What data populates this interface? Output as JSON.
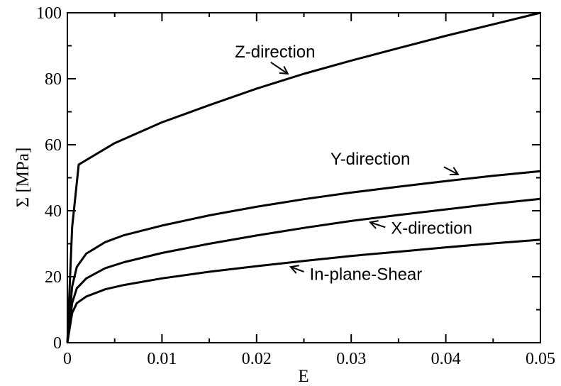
{
  "chart_data": {
    "type": "line",
    "xlabel": "E",
    "ylabel": "Σ [MPa]",
    "xlim": [
      0,
      0.05
    ],
    "ylim": [
      0,
      100
    ],
    "xticks": [
      0,
      0.01,
      0.02,
      0.03,
      0.04,
      0.05
    ],
    "xtick_labels": [
      "0",
      "0.01",
      "0.02",
      "0.03",
      "0.04",
      "0.05"
    ],
    "yticks": [
      0,
      20,
      40,
      60,
      80,
      100
    ],
    "ytick_labels": [
      "0",
      "20",
      "40",
      "60",
      "80",
      "100"
    ],
    "grid": false,
    "series": [
      {
        "name": "Z-direction",
        "x": [
          0,
          0.0005,
          0.0012,
          0.005,
          0.01,
          0.015,
          0.02,
          0.025,
          0.03,
          0.035,
          0.04,
          0.045,
          0.05
        ],
        "y": [
          0,
          35,
          54,
          60.5,
          66.8,
          72.0,
          77.0,
          81.5,
          85.5,
          89.3,
          93.0,
          96.5,
          100
        ]
      },
      {
        "name": "Y-direction",
        "x": [
          0,
          0.0005,
          0.001,
          0.002,
          0.004,
          0.006,
          0.01,
          0.015,
          0.02,
          0.025,
          0.03,
          0.035,
          0.04,
          0.045,
          0.05
        ],
        "y": [
          0,
          17,
          23,
          27,
          30.5,
          32.6,
          35.5,
          38.6,
          41.2,
          43.5,
          45.5,
          47.3,
          49.0,
          50.6,
          52.0
        ]
      },
      {
        "name": "X-direction",
        "x": [
          0,
          0.0005,
          0.001,
          0.002,
          0.004,
          0.006,
          0.01,
          0.015,
          0.02,
          0.025,
          0.03,
          0.035,
          0.04,
          0.045,
          0.05
        ],
        "y": [
          0,
          12,
          16.5,
          19.5,
          22.6,
          24.4,
          27.2,
          30.0,
          32.5,
          34.8,
          36.9,
          38.7,
          40.4,
          42.1,
          43.6
        ]
      },
      {
        "name": "In-plane-Shear",
        "x": [
          0,
          0.0005,
          0.001,
          0.002,
          0.004,
          0.006,
          0.01,
          0.015,
          0.02,
          0.025,
          0.03,
          0.035,
          0.04,
          0.045,
          0.05
        ],
        "y": [
          0,
          9,
          12,
          14,
          16.2,
          17.5,
          19.5,
          21.5,
          23.2,
          24.8,
          26.3,
          27.6,
          28.9,
          30.1,
          31.2
        ]
      }
    ],
    "annotations": [
      {
        "text": "Z-direction",
        "x": 0.0177,
        "y": 86.5,
        "arrow_from": [
          0.0215,
          85.0
        ],
        "arrow_to": [
          0.0233,
          81.5
        ]
      },
      {
        "text": "Y-direction",
        "x": 0.0278,
        "y": 54.0,
        "arrow_from": [
          0.0398,
          53.3
        ],
        "arrow_to": [
          0.0413,
          51.0
        ]
      },
      {
        "text": "X-direction",
        "x": 0.0342,
        "y": 33.0,
        "arrow_from": [
          0.0336,
          35.0
        ],
        "arrow_to": [
          0.032,
          36.5
        ]
      },
      {
        "text": "In-plane-Shear",
        "x": 0.0256,
        "y": 19.0,
        "arrow_from": [
          0.025,
          21.5
        ],
        "arrow_to": [
          0.0236,
          23.0
        ]
      }
    ]
  }
}
